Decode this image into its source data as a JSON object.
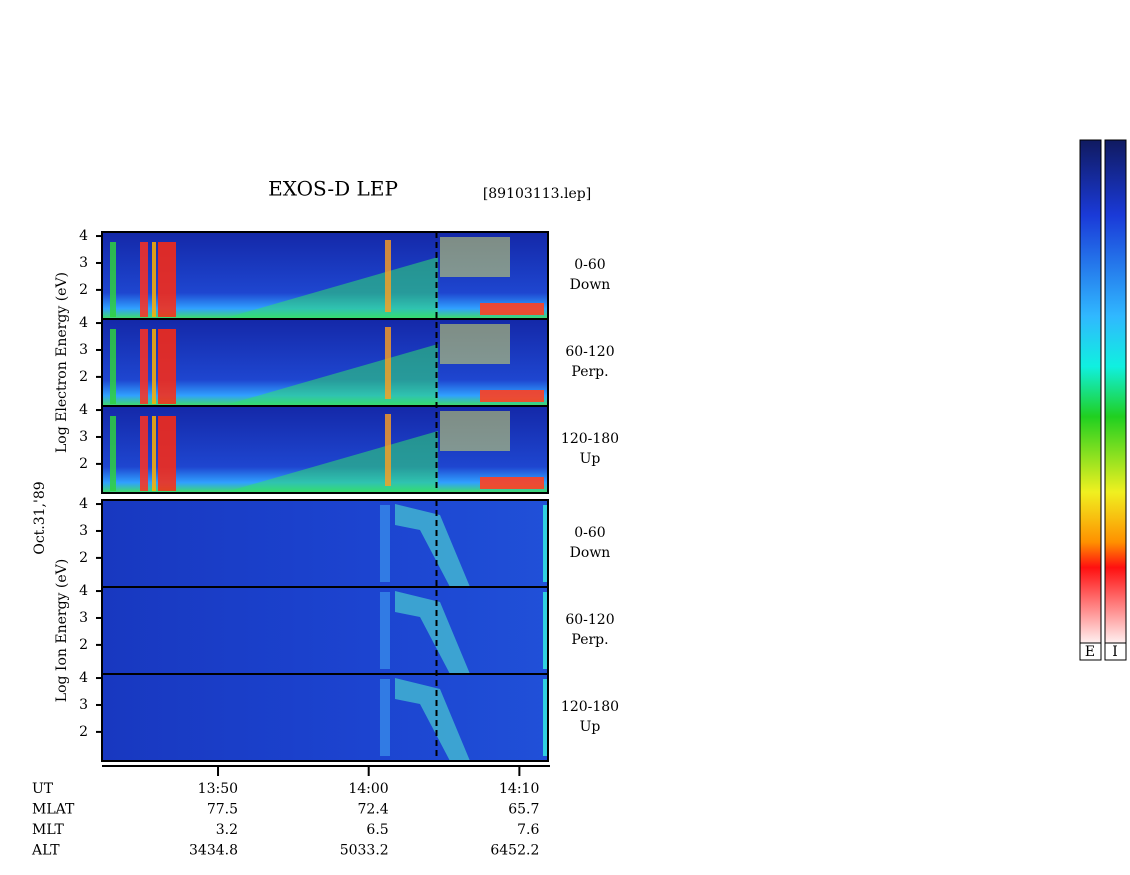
{
  "chart_data": {
    "type": "spectrogram",
    "title": "EXOS-D LEP",
    "file_label": "[89103113.lep]",
    "date_label": "Oct.31,'89",
    "ylim": [
      0.92,
      4.15
    ],
    "yticks": [
      2,
      3,
      4
    ],
    "xlim": [
      822.3,
      851.9
    ],
    "xticks": [
      {
        "value": 830,
        "label": "13:50"
      },
      {
        "value": 840,
        "label": "14:00"
      },
      {
        "value": 850,
        "label": "14:10"
      }
    ],
    "marker": 844.5,
    "groups": [
      {
        "ylabel": "Log Electron Energy (eV)",
        "panels": [
          {
            "range": "0-60",
            "direction": "Down"
          },
          {
            "range": "60-120",
            "direction": "Perp."
          },
          {
            "range": "120-180",
            "direction": "Up"
          }
        ]
      },
      {
        "ylabel": "Log Ion Energy (eV)",
        "panels": [
          {
            "range": "0-60",
            "direction": "Down"
          },
          {
            "range": "60-120",
            "direction": "Perp."
          },
          {
            "range": "120-180",
            "direction": "Up"
          }
        ]
      }
    ],
    "orbit": {
      "labels": [
        "UT",
        "MLAT",
        "MLT",
        "ALT"
      ],
      "MLAT": [
        77.5,
        72.4,
        65.7
      ],
      "MLT": [
        3.2,
        6.5,
        7.6
      ],
      "ALT": [
        3434.8,
        5033.2,
        6452.2
      ]
    },
    "colorbar_labels": [
      "E",
      "I"
    ]
  }
}
